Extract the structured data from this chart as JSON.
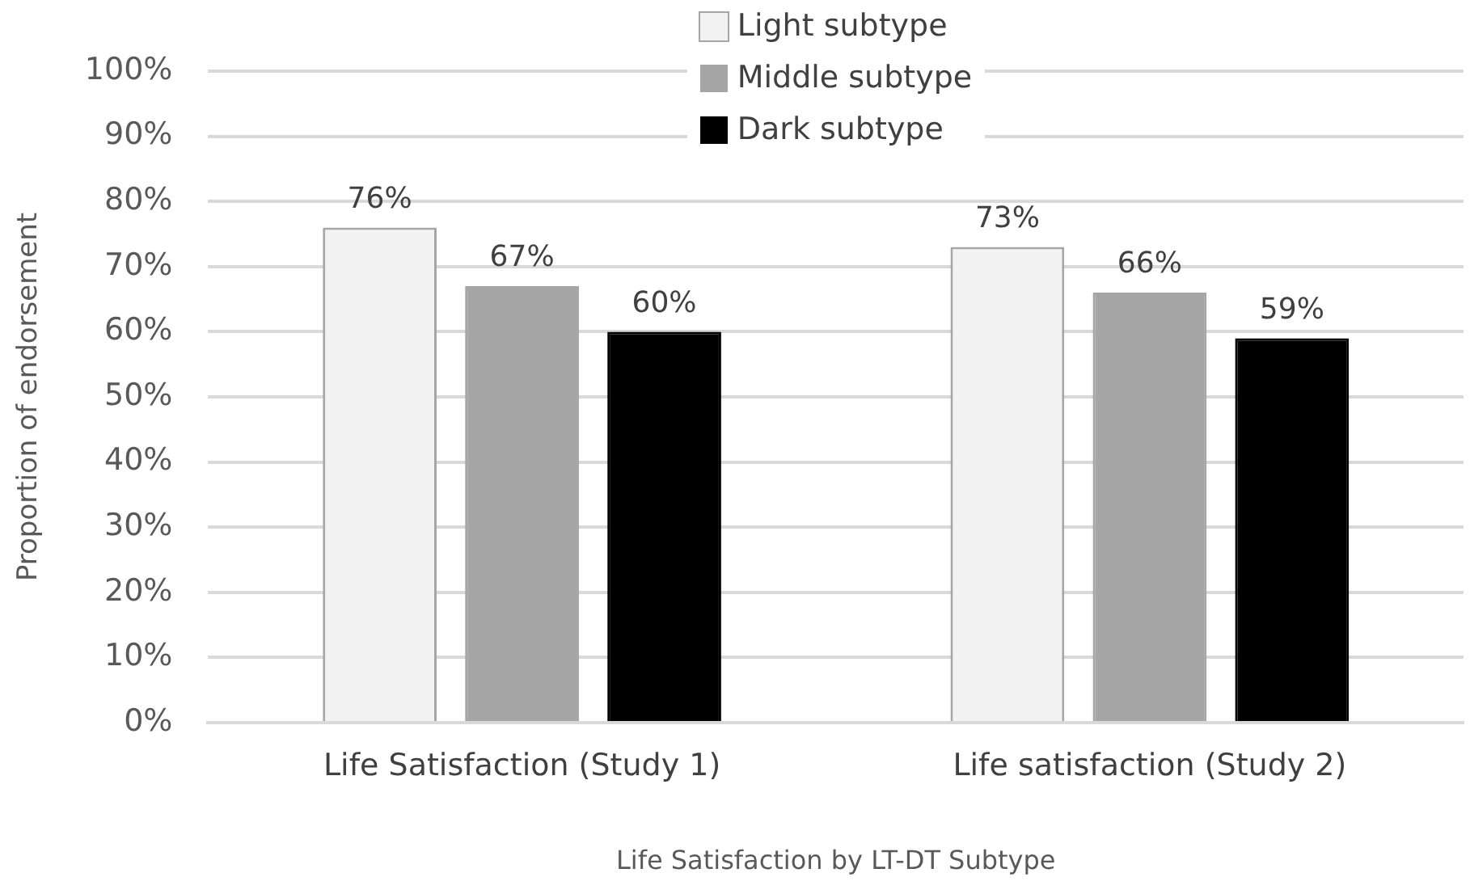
{
  "chart_data": {
    "type": "bar",
    "xlabel": "Life Satisfaction by LT-DT Subtype",
    "ylabel": "Proportion of endorsement",
    "categories": [
      "Life Satisfaction (Study 1)",
      "Life satisfaction (Study 2)"
    ],
    "series": [
      {
        "name": "Light subtype",
        "color": "#f2f2f2",
        "values": [
          76,
          73
        ],
        "value_labels": [
          "76%",
          "73%"
        ]
      },
      {
        "name": "Middle subtype",
        "color": "#a5a5a5",
        "values": [
          67,
          66
        ],
        "value_labels": [
          "67%",
          "66%"
        ]
      },
      {
        "name": "Dark subtype",
        "color": "#000000",
        "values": [
          60,
          59
        ],
        "value_labels": [
          "60%",
          "59%"
        ]
      }
    ],
    "ylim": [
      0,
      100
    ],
    "yticks": [
      {
        "value": 0,
        "label": "0%"
      },
      {
        "value": 10,
        "label": "10%"
      },
      {
        "value": 20,
        "label": "20%"
      },
      {
        "value": 30,
        "label": "30%"
      },
      {
        "value": 40,
        "label": "40%"
      },
      {
        "value": 50,
        "label": "50%"
      },
      {
        "value": 60,
        "label": "60%"
      },
      {
        "value": 70,
        "label": "70%"
      },
      {
        "value": 80,
        "label": "80%"
      },
      {
        "value": 90,
        "label": "90%"
      },
      {
        "value": 100,
        "label": "100%"
      }
    ],
    "grid": "y",
    "legend": "top"
  }
}
